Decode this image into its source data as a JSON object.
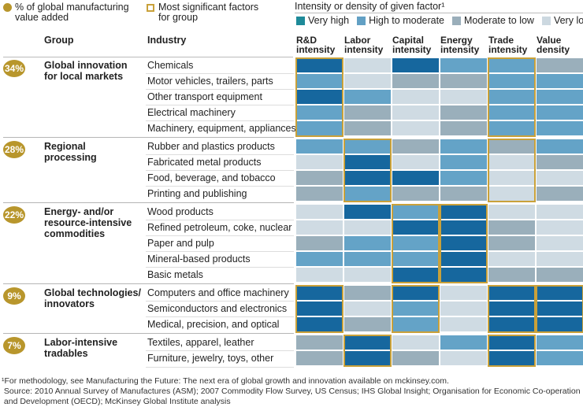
{
  "legend": {
    "pct_label_line1": "% of global manufacturing",
    "pct_label_line2": "value added",
    "significant_label_line1": "Most significant factors",
    "significant_label_line2": "for group",
    "intensity_title": "Intensity or density of given factor¹",
    "levels": [
      {
        "key": "VH",
        "label": "Very high",
        "color": "#1e8a99"
      },
      {
        "key": "HM",
        "label": "High to moderate",
        "color": "#62a0c4"
      },
      {
        "key": "ML",
        "label": "Moderate to low",
        "color": "#9aaeba"
      },
      {
        "key": "VL",
        "label": "Very low",
        "color": "#ccd8e0"
      }
    ]
  },
  "headers": {
    "group": "Group",
    "industry": "Industry",
    "factors": [
      {
        "line1": "R&D",
        "line2": "intensity"
      },
      {
        "line1": "Labor",
        "line2": "intensity"
      },
      {
        "line1": "Capital",
        "line2": "intensity"
      },
      {
        "line1": "Energy",
        "line2": "intensity"
      },
      {
        "line1": "Trade",
        "line2": "intensity"
      },
      {
        "line1": "Value",
        "line2": "density"
      }
    ]
  },
  "colors": {
    "VH": "#16679e",
    "HM": "#64a3c7",
    "ML": "#9aafbb",
    "VL": "#cfdbe3",
    "highlight": "#c9a13a",
    "badge": "#b8962c"
  },
  "chart_data": {
    "type": "heatmap",
    "title": "Intensity or density of given factor",
    "scale": [
      "Very high",
      "High to moderate",
      "Moderate to low",
      "Very low"
    ],
    "columns": [
      "R&D intensity",
      "Labor intensity",
      "Capital intensity",
      "Energy intensity",
      "Trade intensity",
      "Value density"
    ],
    "groups": [
      {
        "share": "34%",
        "name_lines": [
          "Global innovation",
          "for local markets"
        ],
        "highlight_columns": [
          0,
          4
        ],
        "rows": [
          {
            "industry": "Chemicals",
            "values": [
              "VH",
              "VL",
              "VH",
              "HM",
              "HM",
              "ML"
            ]
          },
          {
            "industry": "Motor vehicles, trailers, parts",
            "values": [
              "HM",
              "VL",
              "ML",
              "ML",
              "HM",
              "HM"
            ]
          },
          {
            "industry": "Other transport equipment",
            "values": [
              "VH",
              "HM",
              "VL",
              "VL",
              "HM",
              "HM"
            ]
          },
          {
            "industry": "Electrical machinery",
            "values": [
              "HM",
              "ML",
              "VL",
              "ML",
              "HM",
              "HM"
            ]
          },
          {
            "industry": "Machinery, equipment, appliances",
            "values": [
              "HM",
              "ML",
              "VL",
              "ML",
              "HM",
              "HM"
            ]
          }
        ]
      },
      {
        "share": "28%",
        "name_lines": [
          "Regional",
          "processing"
        ],
        "highlight_columns": [
          1,
          4
        ],
        "rows": [
          {
            "industry": "Rubber and plastics products",
            "values": [
              "HM",
              "HM",
              "ML",
              "HM",
              "ML",
              "HM"
            ]
          },
          {
            "industry": "Fabricated metal products",
            "values": [
              "VL",
              "VH",
              "VL",
              "HM",
              "VL",
              "ML"
            ]
          },
          {
            "industry": "Food, beverage, and tobacco",
            "values": [
              "ML",
              "VH",
              "VH",
              "HM",
              "VL",
              "VL"
            ]
          },
          {
            "industry": "Printing and publishing",
            "values": [
              "ML",
              "HM",
              "ML",
              "ML",
              "VL",
              "ML"
            ]
          }
        ]
      },
      {
        "share": "22%",
        "name_lines": [
          "Energy- and/or",
          "resource-intensive",
          "commodities"
        ],
        "highlight_columns": [
          2,
          3
        ],
        "rows": [
          {
            "industry": "Wood products",
            "values": [
              "VL",
              "VH",
              "HM",
              "VH",
              "VL",
              "VL"
            ]
          },
          {
            "industry": "Refined petroleum, coke, nuclear",
            "values": [
              "VL",
              "VL",
              "VH",
              "VH",
              "ML",
              "VL"
            ]
          },
          {
            "industry": "Paper and pulp",
            "values": [
              "ML",
              "HM",
              "HM",
              "VH",
              "ML",
              "VL"
            ]
          },
          {
            "industry": "Mineral-based products",
            "values": [
              "HM",
              "HM",
              "HM",
              "VH",
              "VL",
              "VL"
            ]
          },
          {
            "industry": "Basic metals",
            "values": [
              "VL",
              "VL",
              "VH",
              "VH",
              "ML",
              "ML"
            ]
          }
        ]
      },
      {
        "share": "9%",
        "name_lines": [
          "Global technologies/",
          "innovators"
        ],
        "highlight_columns": [
          0,
          2,
          4,
          5
        ],
        "rows": [
          {
            "industry": "Computers and office machinery",
            "values": [
              "VH",
              "ML",
              "VH",
              "VL",
              "VH",
              "VH"
            ]
          },
          {
            "industry": "Semiconductors and electronics",
            "values": [
              "VH",
              "VL",
              "HM",
              "VL",
              "VH",
              "VH"
            ]
          },
          {
            "industry": "Medical, precision, and optical",
            "values": [
              "VH",
              "ML",
              "HM",
              "VL",
              "VH",
              "VH"
            ]
          }
        ]
      },
      {
        "share": "7%",
        "name_lines": [
          "Labor-intensive",
          "tradables"
        ],
        "highlight_columns": [
          1,
          4
        ],
        "rows": [
          {
            "industry": "Textiles, apparel, leather",
            "values": [
              "ML",
              "VH",
              "VL",
              "HM",
              "VH",
              "HM"
            ]
          },
          {
            "industry": "Furniture, jewelry, toys, other",
            "values": [
              "ML",
              "VH",
              "ML",
              "VL",
              "VH",
              "HM"
            ]
          }
        ]
      }
    ]
  },
  "footnotes": {
    "line1": "¹For methodology, see Manufacturing the Future: The next era of global growth and innovation available on mckinsey.com.",
    "line2": " Source: 2010 Annual Survey of Manufactures (ASM); 2007 Commodity Flow Survey, US Census; IHS Global Insight; Organisation for Economic Co-operation",
    "line3": " and Development (OECD); McKinsey Global Institute analysis"
  }
}
